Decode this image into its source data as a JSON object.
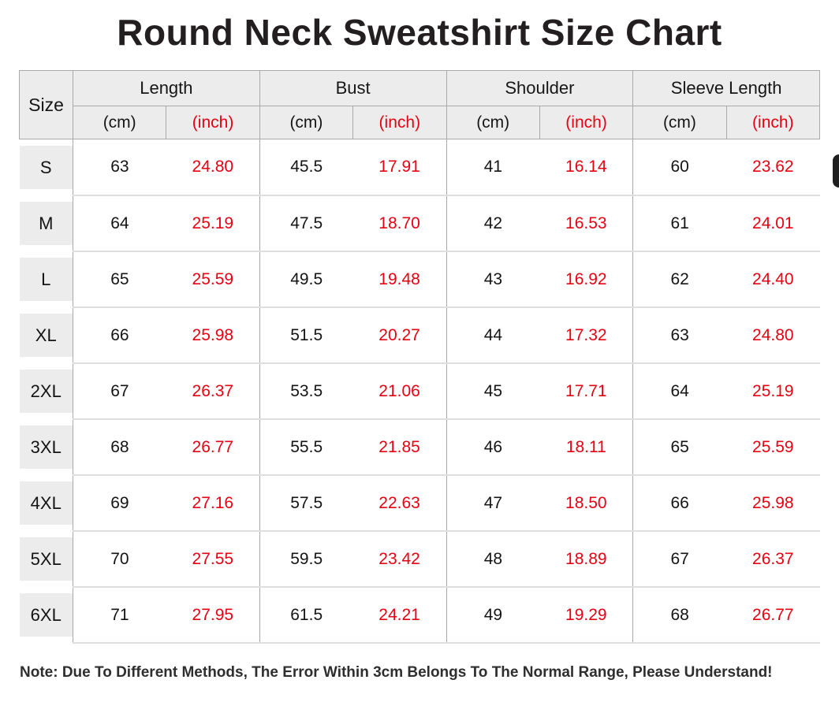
{
  "title": "Round Neck Sweatshirt Size Chart",
  "note": "Note: Due To Different Methods, The Error Within 3cm Belongs To The Normal Range, Please Understand!",
  "colors": {
    "accent_red": "#e60012",
    "header_bg": "#ececec",
    "text_dark": "#141414"
  },
  "table": {
    "size_header": "Size",
    "groups": [
      {
        "label": "Length"
      },
      {
        "label": "Bust"
      },
      {
        "label": "Shoulder"
      },
      {
        "label": "Sleeve Length"
      }
    ],
    "unit_cm": "(cm)",
    "unit_inch": "(inch)",
    "rows": [
      {
        "size": "S",
        "values": [
          "63",
          "24.80",
          "45.5",
          "17.91",
          "41",
          "16.14",
          "60",
          "23.62"
        ]
      },
      {
        "size": "M",
        "values": [
          "64",
          "25.19",
          "47.5",
          "18.70",
          "42",
          "16.53",
          "61",
          "24.01"
        ]
      },
      {
        "size": "L",
        "values": [
          "65",
          "25.59",
          "49.5",
          "19.48",
          "43",
          "16.92",
          "62",
          "24.40"
        ]
      },
      {
        "size": "XL",
        "values": [
          "66",
          "25.98",
          "51.5",
          "20.27",
          "44",
          "17.32",
          "63",
          "24.80"
        ]
      },
      {
        "size": "2XL",
        "values": [
          "67",
          "26.37",
          "53.5",
          "21.06",
          "45",
          "17.71",
          "64",
          "25.19"
        ]
      },
      {
        "size": "3XL",
        "values": [
          "68",
          "26.77",
          "55.5",
          "21.85",
          "46",
          "18.11",
          "65",
          "25.59"
        ]
      },
      {
        "size": "4XL",
        "values": [
          "69",
          "27.16",
          "57.5",
          "22.63",
          "47",
          "18.50",
          "66",
          "25.98"
        ]
      },
      {
        "size": "5XL",
        "values": [
          "70",
          "27.55",
          "59.5",
          "23.42",
          "48",
          "18.89",
          "67",
          "26.37"
        ]
      },
      {
        "size": "6XL",
        "values": [
          "71",
          "27.95",
          "61.5",
          "24.21",
          "49",
          "19.29",
          "68",
          "26.77"
        ]
      }
    ]
  },
  "chart_data": {
    "type": "table",
    "title": "Round Neck Sweatshirt Size Chart",
    "columns": [
      "Size",
      "Length (cm)",
      "Length (inch)",
      "Bust (cm)",
      "Bust (inch)",
      "Shoulder (cm)",
      "Shoulder (inch)",
      "Sleeve Length (cm)",
      "Sleeve Length (inch)"
    ],
    "rows": [
      [
        "S",
        63,
        24.8,
        45.5,
        17.91,
        41,
        16.14,
        60,
        23.62
      ],
      [
        "M",
        64,
        25.19,
        47.5,
        18.7,
        42,
        16.53,
        61,
        24.01
      ],
      [
        "L",
        65,
        25.59,
        49.5,
        19.48,
        43,
        16.92,
        62,
        24.4
      ],
      [
        "XL",
        66,
        25.98,
        51.5,
        20.27,
        44,
        17.32,
        63,
        24.8
      ],
      [
        "2XL",
        67,
        26.37,
        53.5,
        21.06,
        45,
        17.71,
        64,
        25.19
      ],
      [
        "3XL",
        68,
        26.77,
        55.5,
        21.85,
        46,
        18.11,
        65,
        25.59
      ],
      [
        "4XL",
        69,
        27.16,
        57.5,
        22.63,
        47,
        18.5,
        66,
        25.98
      ],
      [
        "5XL",
        70,
        27.55,
        59.5,
        23.42,
        48,
        18.89,
        67,
        26.37
      ],
      [
        "6XL",
        71,
        27.95,
        61.5,
        24.21,
        49,
        19.29,
        68,
        26.77
      ]
    ],
    "note": "Note: Due To Different Methods, The Error Within 3cm Belongs To The Normal Range, Please Understand!"
  }
}
